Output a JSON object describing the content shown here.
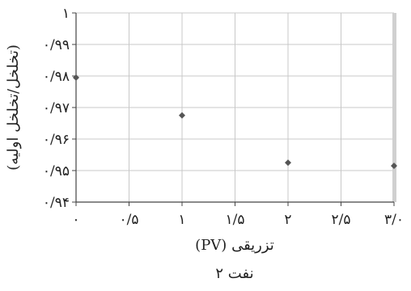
{
  "chart_data": {
    "type": "scatter",
    "title": "نفت ۲",
    "xlabel": "(PV) تزریقی",
    "ylabel": "(تخلخل/تخلخل اولیه)",
    "x_ticks": [
      0,
      0.5,
      1,
      1.5,
      2,
      2.5,
      3
    ],
    "x_tick_labels": [
      "۰",
      "۰/۵",
      "۱",
      "۱/۵",
      "۲",
      "۲/۵",
      "۳/۰"
    ],
    "y_ticks": [
      0.94,
      0.95,
      0.96,
      0.97,
      0.98,
      0.99,
      1.0
    ],
    "y_tick_labels": [
      "۰/۹۴",
      "۰/۹۵",
      "۰/۹۶",
      "۰/۹۷",
      "۰/۹۸",
      "۰/۹۹",
      "۱"
    ],
    "xlim": [
      0,
      3
    ],
    "ylim": [
      0.94,
      1.0
    ],
    "grid": true,
    "series": [
      {
        "x": [
          0,
          1.0,
          2.0,
          3.0
        ],
        "y": [
          0.9795,
          0.9675,
          0.9525,
          0.9515
        ]
      }
    ],
    "marker_color": "#555555",
    "grid_color": "#c8c8c8"
  }
}
